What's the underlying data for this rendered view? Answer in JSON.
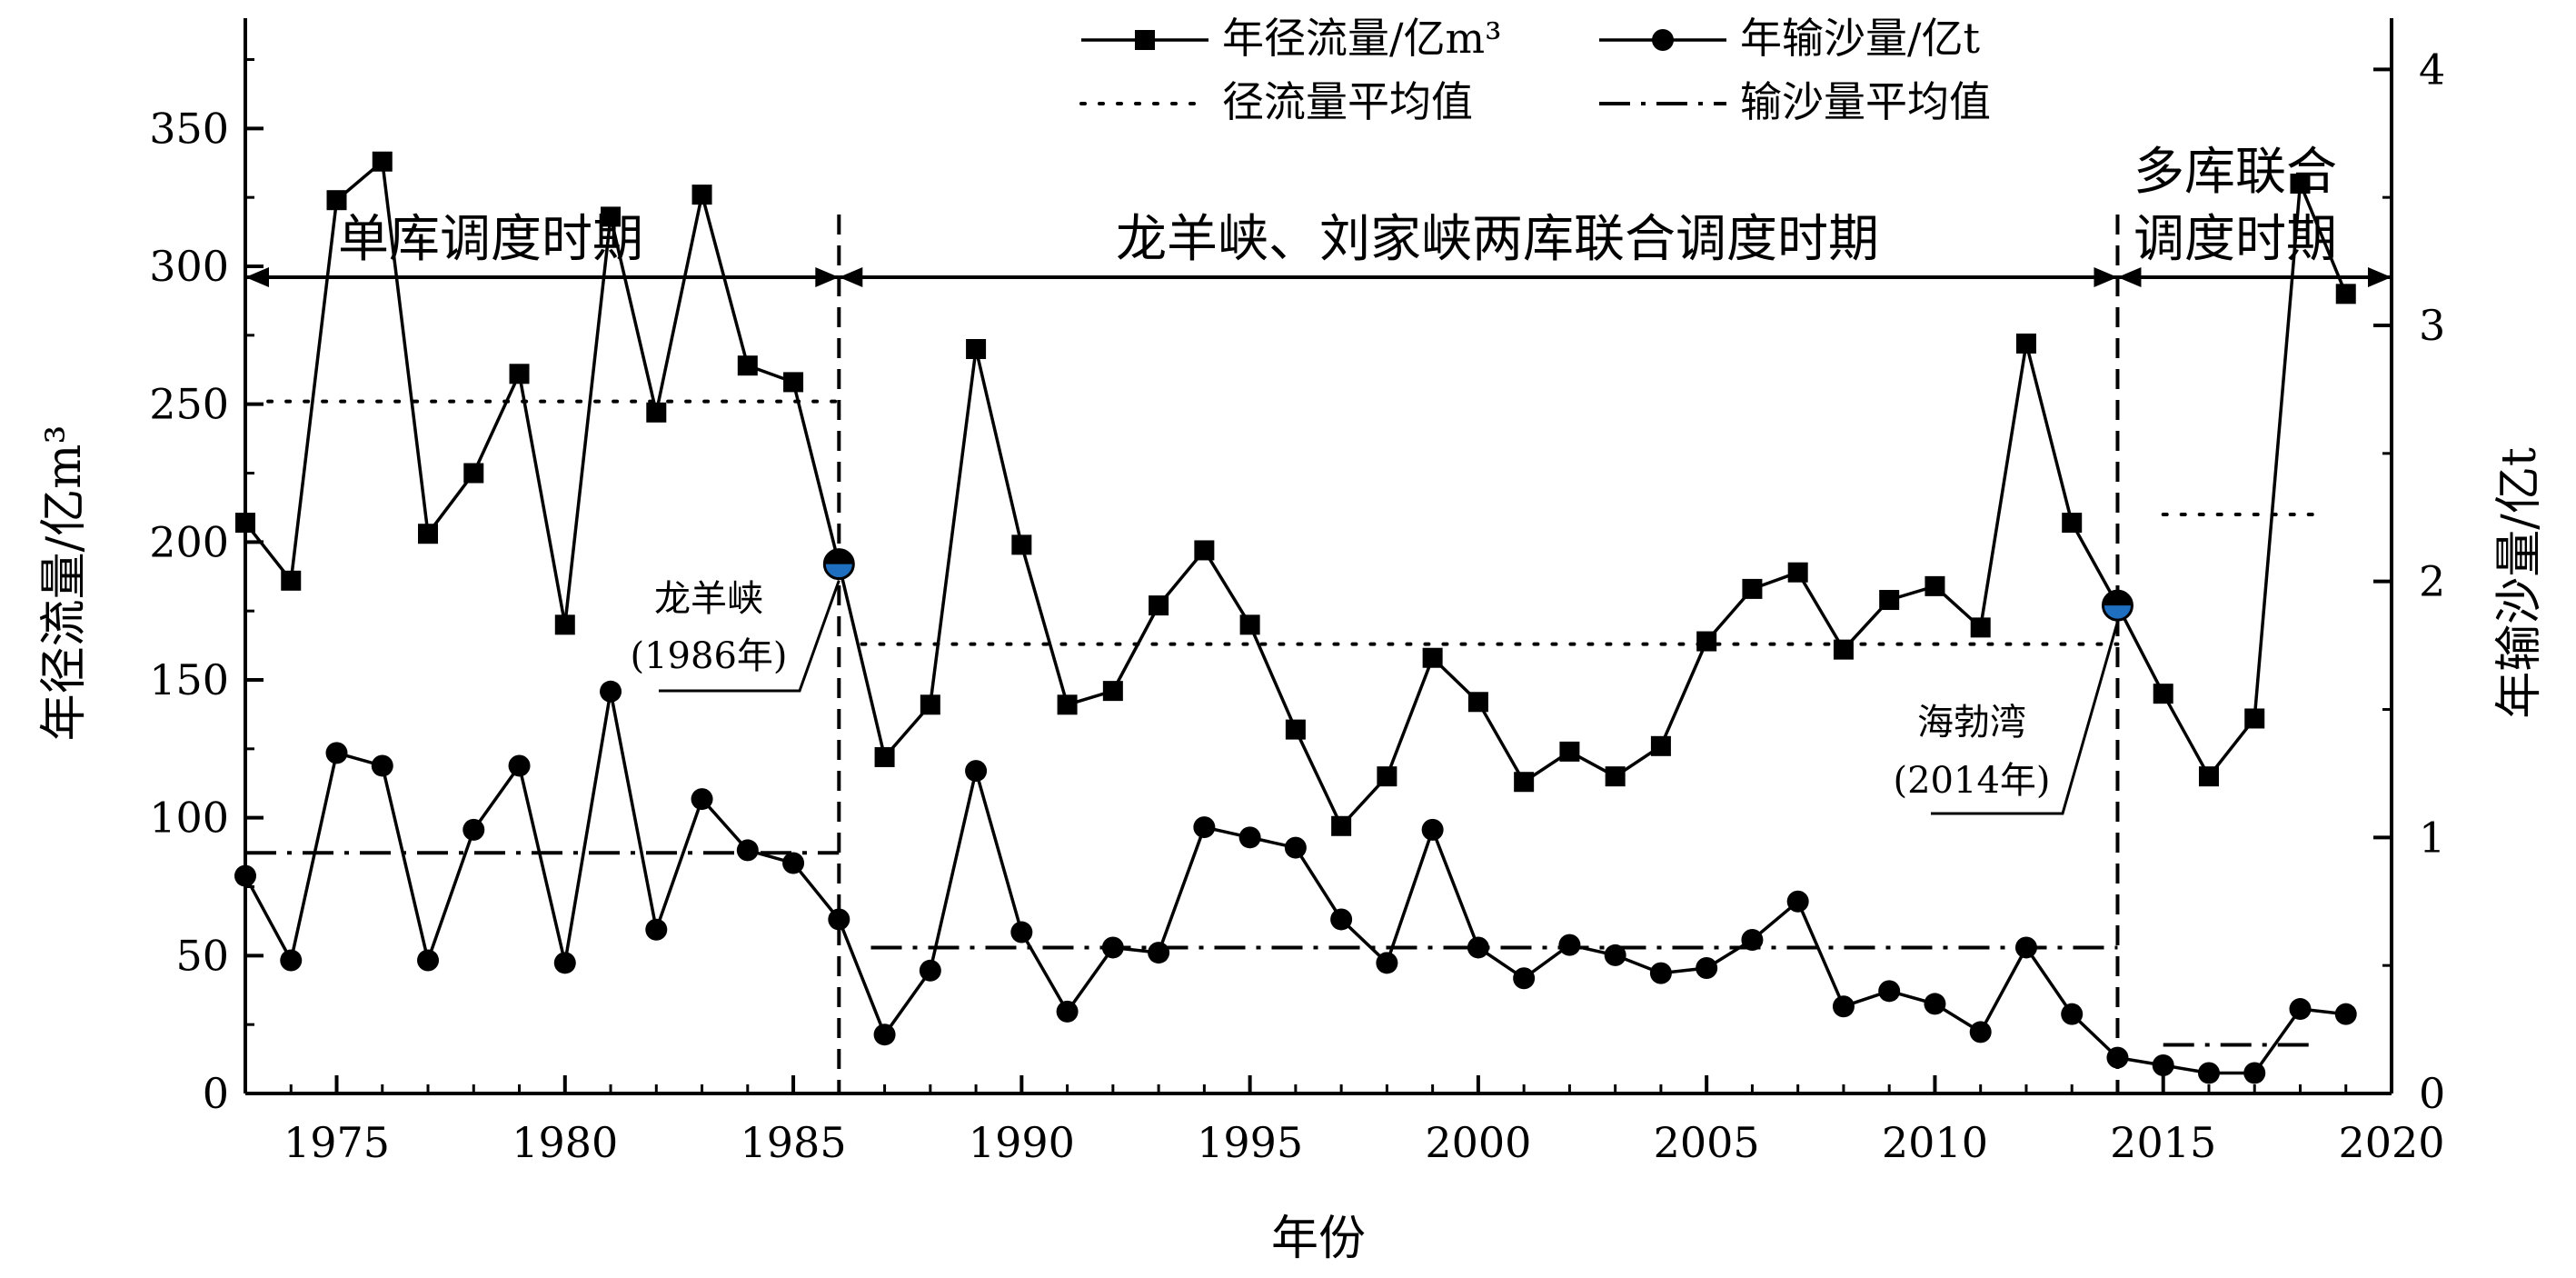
{
  "chart_data": {
    "type": "line",
    "xlabel": "年份",
    "ylabel_left": "年径流量/亿m³",
    "ylabel_right": "年输沙量/亿t",
    "xlim": [
      1973,
      2020
    ],
    "ylim_left": [
      0,
      390
    ],
    "ylim_right": [
      0,
      4.2
    ],
    "x_ticks": [
      1975,
      1980,
      1985,
      1990,
      1995,
      2000,
      2005,
      2010,
      2015,
      2020
    ],
    "y_left_ticks": [
      0,
      50,
      100,
      150,
      200,
      250,
      300,
      350
    ],
    "y_right_ticks": [
      0,
      1,
      2,
      3,
      4
    ],
    "grid": false,
    "legend_position": "top-center",
    "legend": {
      "runoff": "年径流量/亿m³",
      "sediment": "年输沙量/亿t",
      "runoff_mean": "径流量平均值",
      "sediment_mean": "输沙量平均值"
    },
    "periods": [
      {
        "label": "单库调度时期",
        "start": 1973,
        "end": 1986
      },
      {
        "label": "龙羊峡、刘家峡两库联合调度时期",
        "start": 1986,
        "end": 2014
      },
      {
        "label_lines": [
          "多库联合",
          "调度时期"
        ],
        "start": 2014,
        "end": 2020
      }
    ],
    "period_boundaries": [
      1986,
      2014
    ],
    "annotations": [
      {
        "lines": [
          "龙羊峡",
          "(1986年)"
        ],
        "x": 1986,
        "y": 192
      },
      {
        "lines": [
          "海勃湾",
          "(2014年)"
        ],
        "x": 2014,
        "y": 177
      }
    ],
    "series": [
      {
        "name": "年径流量/亿m³",
        "axis": "left",
        "marker": "square",
        "x": [
          1973,
          1974,
          1975,
          1976,
          1977,
          1978,
          1979,
          1980,
          1981,
          1982,
          1983,
          1984,
          1985,
          1986,
          1987,
          1988,
          1989,
          1990,
          1991,
          1992,
          1993,
          1994,
          1995,
          1996,
          1997,
          1998,
          1999,
          2000,
          2001,
          2002,
          2003,
          2004,
          2005,
          2006,
          2007,
          2008,
          2009,
          2010,
          2011,
          2012,
          2013,
          2014,
          2015,
          2016,
          2017,
          2018,
          2019
        ],
        "values": [
          207,
          186,
          324,
          338,
          203,
          225,
          261,
          170,
          318,
          247,
          326,
          264,
          258,
          192,
          122,
          141,
          270,
          199,
          141,
          146,
          177,
          197,
          170,
          132,
          97,
          115,
          158,
          142,
          113,
          124,
          115,
          126,
          164,
          183,
          189,
          161,
          179,
          184,
          169,
          272,
          207,
          177,
          145,
          115,
          136,
          330,
          290
        ]
      },
      {
        "name": "年输沙量/亿t",
        "axis": "right",
        "marker": "circle",
        "x": [
          1973,
          1974,
          1975,
          1976,
          1977,
          1978,
          1979,
          1980,
          1981,
          1982,
          1983,
          1984,
          1985,
          1986,
          1987,
          1988,
          1989,
          1990,
          1991,
          1992,
          1993,
          1994,
          1995,
          1996,
          1997,
          1998,
          1999,
          2000,
          2001,
          2002,
          2003,
          2004,
          2005,
          2006,
          2007,
          2008,
          2009,
          2010,
          2011,
          2012,
          2013,
          2014,
          2015,
          2016,
          2017,
          2018,
          2019
        ],
        "values": [
          0.85,
          0.52,
          1.33,
          1.28,
          0.52,
          1.03,
          1.28,
          0.51,
          1.57,
          0.64,
          1.15,
          0.95,
          0.9,
          0.68,
          0.23,
          0.48,
          1.26,
          0.63,
          0.32,
          0.57,
          0.55,
          1.04,
          1.0,
          0.96,
          0.68,
          0.51,
          1.03,
          0.57,
          0.45,
          0.58,
          0.54,
          0.47,
          0.49,
          0.6,
          0.75,
          0.34,
          0.4,
          0.35,
          0.24,
          0.57,
          0.31,
          0.14,
          0.11,
          0.08,
          0.08,
          0.33,
          0.31
        ]
      },
      {
        "name": "径流量平均值",
        "axis": "left",
        "style": "dotted",
        "segments": [
          {
            "x": [
              1973.5,
              1986
            ],
            "y": 251
          },
          {
            "x": [
              1986.5,
              2014
            ],
            "y": 163
          },
          {
            "x": [
              2015,
              2018.3
            ],
            "y": 210
          }
        ]
      },
      {
        "name": "输沙量平均值",
        "axis": "right",
        "style": "dashdot",
        "segments": [
          {
            "x": [
              1973,
              1986
            ],
            "y": 0.94
          },
          {
            "x": [
              1986.7,
              2014
            ],
            "y": 0.57
          },
          {
            "x": [
              2015,
              2018.3
            ],
            "y": 0.19
          }
        ]
      }
    ]
  }
}
